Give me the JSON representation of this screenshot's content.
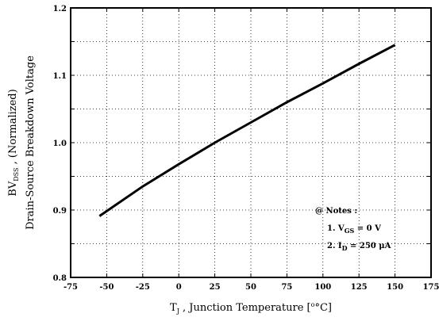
{
  "chart_data": {
    "type": "line",
    "title": "",
    "ylabel_line1": "BV",
    "ylabel_line1_sub": "DSS",
    "ylabel_line1_rest": " ,  (Normalized)",
    "ylabel_line2": "Drain-Source Breakdown Voltage",
    "xlabel": "T",
    "xlabel_sub": "J",
    "xlabel_rest": " , Junction Temperature  [",
    "xlabel_unit": "°C]",
    "xlim": [
      -75,
      175
    ],
    "ylim": [
      0.8,
      1.2
    ],
    "x_ticks": [
      -75,
      -50,
      -25,
      0,
      25,
      50,
      75,
      100,
      125,
      150,
      175
    ],
    "x_tick_labels": [
      "-75",
      "-50",
      "-25",
      "0",
      "25",
      "50",
      "75",
      "100",
      "125",
      "150",
      "175"
    ],
    "y_ticks": [
      0.8,
      0.9,
      1.0,
      1.1,
      1.2
    ],
    "y_tick_labels": [
      "0.8",
      "0.9",
      "1.0",
      "1.1",
      "1.2"
    ],
    "grid": "dotted",
    "series": [
      {
        "x": [
          -55,
          -25,
          0,
          25,
          50,
          75,
          100,
          125,
          150
        ],
        "y": [
          0.891,
          0.935,
          0.968,
          1.0,
          1.03,
          1.06,
          1.088,
          1.117,
          1.145
        ]
      }
    ],
    "notes": {
      "heading": "@ Notes :",
      "note1_prefix": "1. V",
      "note1_sub": "GS",
      "note1_rest": " = 0 V",
      "note2_prefix": "2. I",
      "note2_sub": "D",
      "note2_rest": " = 250 μA"
    }
  }
}
